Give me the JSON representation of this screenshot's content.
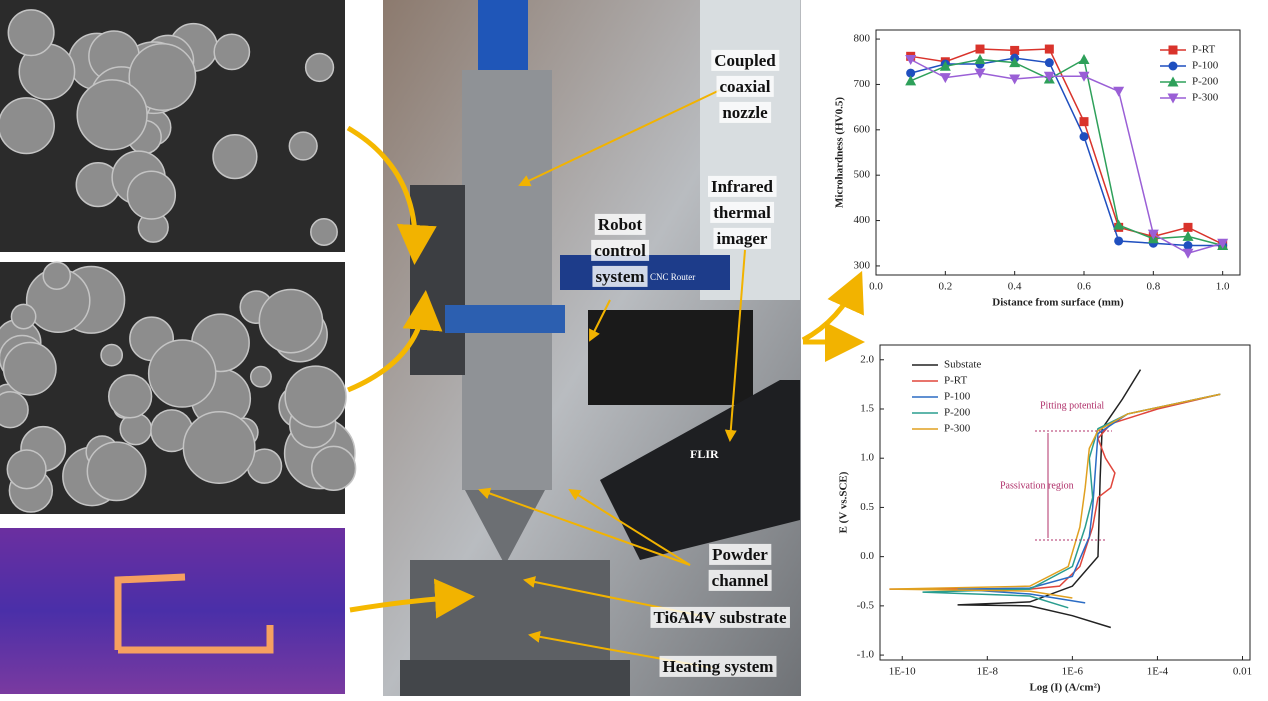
{
  "photo_labels": [
    {
      "lines": [
        "Coupled",
        "coaxial",
        "nozzle"
      ]
    },
    {
      "lines": [
        "Infrared",
        "thermal",
        "imager"
      ]
    },
    {
      "lines": [
        "Robot",
        "control",
        "system"
      ]
    },
    {
      "lines": [
        "Powder",
        "channel"
      ]
    },
    {
      "lines": [
        "Ti6Al4V substrate"
      ]
    },
    {
      "lines": [
        "Heating system"
      ]
    }
  ],
  "photo_texts": [
    "CNC Router",
    "FLIR"
  ],
  "chart_data": [
    {
      "type": "line",
      "x_label": "Distance from surface (mm)",
      "y_label": "Microhardness (HV0.5)",
      "x": [
        0.1,
        0.2,
        0.3,
        0.4,
        0.5,
        0.6,
        0.7,
        0.8,
        0.9,
        1.0
      ],
      "xlim": [
        0,
        1.05
      ],
      "xticks": [
        {
          "value": 0,
          "label": "0.0"
        },
        0.2,
        0.4,
        0.6,
        0.8,
        {
          "value": 1,
          "label": "1.0"
        }
      ],
      "ylim": [
        280,
        820
      ],
      "yticks": [
        300,
        400,
        500,
        600,
        700,
        800
      ],
      "legend": "upper right",
      "series": [
        {
          "name": "P-RT",
          "color": "#d9332b",
          "marker": "square",
          "values": [
            762,
            750,
            778,
            775,
            778,
            618,
            385,
            365,
            385,
            348
          ]
        },
        {
          "name": "P-100",
          "color": "#1f4fbf",
          "marker": "circle",
          "values": [
            725,
            745,
            745,
            758,
            748,
            585,
            355,
            350,
            345,
            345
          ]
        },
        {
          "name": "P-200",
          "color": "#2ea05a",
          "marker": "triangle",
          "values": [
            708,
            740,
            755,
            748,
            712,
            755,
            390,
            360,
            365,
            345
          ]
        },
        {
          "name": "P-300",
          "color": "#9a5fd6",
          "marker": "triangle-down",
          "values": [
            755,
            715,
            725,
            712,
            718,
            718,
            685,
            370,
            328,
            350
          ]
        }
      ]
    },
    {
      "type": "line",
      "x_label": "Log (I) (A/cm²)",
      "y_label": "E (V vs.SCE)",
      "x_scale": "log",
      "xlim": [
        3e-11,
        0.015
      ],
      "xticks": [
        {
          "value": 1e-10,
          "label": "1E-10"
        },
        {
          "value": 1e-08,
          "label": "1E-8"
        },
        {
          "value": 1e-06,
          "label": "1E-6"
        },
        {
          "value": 0.0001,
          "label": "1E-4"
        },
        0.01
      ],
      "ylim": [
        -1.05,
        2.15
      ],
      "yticks": [
        {
          "value": -1,
          "label": "-1.0"
        },
        -0.5,
        {
          "value": 0,
          "label": "0.0"
        },
        0.5,
        {
          "value": 1,
          "label": "1.0"
        },
        1.5,
        {
          "value": 2,
          "label": "2.0"
        }
      ],
      "legend": "upper left",
      "annotations": [
        "Pitting potential",
        "Passivation region"
      ],
      "series": [
        {
          "name": "Substate",
          "color": "#222222",
          "x": [
            8e-06,
            1e-06,
            1e-07,
            2e-09,
            1e-07,
            1e-06,
            4e-06,
            4.5e-06,
            5e-06,
            1.5e-05,
            4e-05
          ],
          "values": [
            -0.72,
            -0.6,
            -0.5,
            -0.49,
            -0.46,
            -0.3,
            0,
            0.8,
            1.3,
            1.6,
            1.9
          ]
        },
        {
          "name": "P-RT",
          "color": "#e0463c",
          "x": [
            5e-11,
            1e-07,
            5e-07,
            1.5e-06,
            3e-06,
            4e-06,
            8e-06,
            1e-05,
            6e-06,
            4e-06,
            8e-06,
            0.0001,
            0.003
          ],
          "values": [
            -0.33,
            -0.33,
            -0.3,
            -0.1,
            0.3,
            0.6,
            0.7,
            0.85,
            1.0,
            1.2,
            1.35,
            1.5,
            1.65
          ]
        },
        {
          "name": "P-100",
          "color": "#2b6cc4",
          "x": [
            2e-06,
            1e-07,
            2e-09,
            1e-07,
            1e-06,
            2.5e-06,
            3e-06,
            3.5e-06,
            4e-06,
            2e-05,
            0.003
          ],
          "values": [
            -0.47,
            -0.38,
            -0.33,
            -0.32,
            -0.2,
            0.2,
            0.5,
            0.9,
            1.25,
            1.45,
            1.65
          ]
        },
        {
          "name": "P-200",
          "color": "#2a9d8f",
          "x": [
            8e-07,
            1e-07,
            3e-10,
            1e-07,
            1e-06,
            2e-06,
            3e-06,
            2.5e-06,
            4e-06,
            2e-05,
            0.003
          ],
          "values": [
            -0.52,
            -0.4,
            -0.36,
            -0.33,
            -0.1,
            0.3,
            0.6,
            1.0,
            1.3,
            1.45,
            1.65
          ]
        },
        {
          "name": "P-300",
          "color": "#e0a020",
          "x": [
            1e-06,
            1e-07,
            5e-11,
            1e-07,
            8e-07,
            1.5e-06,
            2e-06,
            2.5e-06,
            4e-06,
            2e-05,
            0.003
          ],
          "values": [
            -0.42,
            -0.35,
            -0.33,
            -0.3,
            -0.1,
            0.3,
            0.7,
            1.1,
            1.28,
            1.45,
            1.65
          ]
        }
      ]
    }
  ]
}
